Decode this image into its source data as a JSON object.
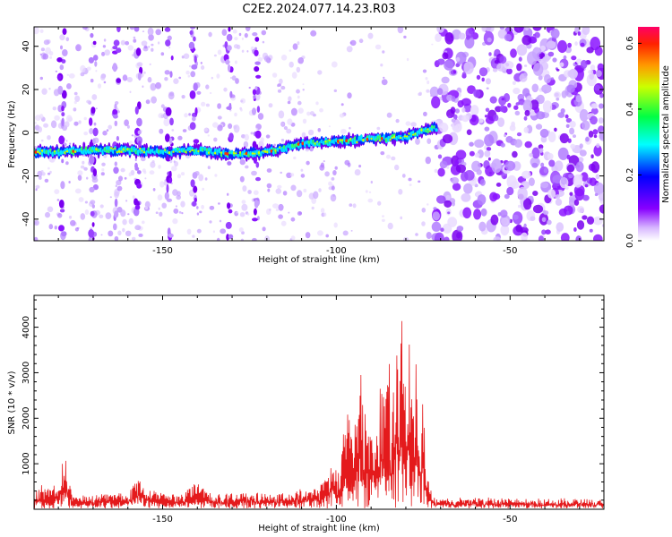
{
  "title": "C2E2.2024.077.14.23.R03",
  "chart_data": [
    {
      "type": "heatmap",
      "title": "C2E2.2024.077.14.23.R03",
      "xlabel": "Height of straight line (km)",
      "ylabel": "Frequency (Hz)",
      "xlim": [
        -187,
        -23
      ],
      "ylim": [
        -50,
        49
      ],
      "x_ticks": [
        -150,
        -100,
        -50
      ],
      "y_ticks": [
        -40,
        -20,
        0,
        20,
        40
      ],
      "trace": {
        "x": [
          -187,
          -180,
          -170,
          -160,
          -150,
          -140,
          -130,
          -120,
          -110,
          -100,
          -90,
          -80,
          -75,
          -72
        ],
        "y": [
          -9,
          -9,
          -8,
          -8,
          -9,
          -8,
          -10,
          -9,
          -5,
          -4,
          -3,
          -2,
          1,
          2
        ]
      },
      "colorbar": {
        "label": "Normalized spectral amplitude",
        "range": [
          0,
          0.65
        ],
        "ticks": [
          0.0,
          0.2,
          0.4,
          0.6
        ],
        "tick_labels": [
          "0.0",
          "0.2",
          "0.4",
          "0.6"
        ]
      },
      "grid": false
    },
    {
      "type": "line",
      "xlabel": "Height of straight line (km)",
      "ylabel": "SNR (10 * v/v)",
      "xlim": [
        -187,
        -23
      ],
      "ylim": [
        0,
        4700
      ],
      "x_ticks": [
        -150,
        -100,
        -50
      ],
      "y_ticks": [
        1000,
        2000,
        3000,
        4000
      ],
      "color": "#e41a1c",
      "series": [
        {
          "x": [
            -187,
            -185,
            -182,
            -180,
            -178,
            -176,
            -170,
            -160,
            -157,
            -155,
            -150,
            -145,
            -140,
            -135,
            -130,
            -125,
            -120,
            -115,
            -110,
            -105,
            -103,
            -101,
            -99,
            -97,
            -95,
            -93,
            -92,
            -91,
            -90,
            -89,
            -88,
            -87,
            -86,
            -85,
            -84,
            -83,
            -82,
            -81,
            -80,
            -79,
            -78,
            -77,
            -76,
            -75,
            -74,
            -72,
            -70,
            -60,
            -50,
            -40,
            -30,
            -23
          ],
          "y": [
            300,
            500,
            400,
            700,
            1200,
            250,
            300,
            350,
            800,
            400,
            350,
            300,
            550,
            300,
            300,
            350,
            300,
            350,
            400,
            450,
            700,
            1100,
            700,
            2500,
            1500,
            3200,
            1800,
            2700,
            1600,
            2300,
            1500,
            3400,
            2200,
            3900,
            1500,
            4700,
            2300,
            4600,
            2200,
            4100,
            2000,
            3700,
            1800,
            2500,
            700,
            250,
            200,
            220,
            200,
            180,
            200,
            150
          ]
        }
      ],
      "grid": false
    }
  ]
}
